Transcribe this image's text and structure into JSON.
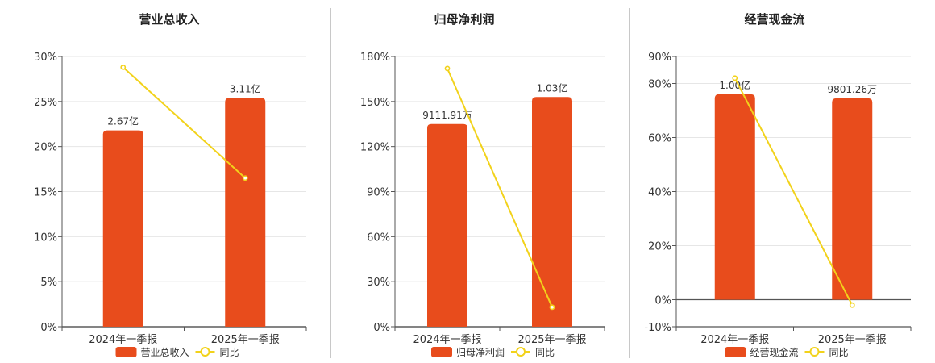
{
  "colors": {
    "bar": "#E84C1C",
    "line": "#F2D21B",
    "grid": "#e6e6e6",
    "axis": "#555555"
  },
  "chart_data": [
    {
      "type": "bar",
      "title": "营业总收入",
      "categories": [
        "2024年一季报",
        "2025年一季报"
      ],
      "y_ticks": [
        "0%",
        "5%",
        "10%",
        "15%",
        "20%",
        "25%",
        "30%"
      ],
      "ylim": [
        0,
        30
      ],
      "bar_labels": [
        "2.67亿",
        "3.11亿"
      ],
      "series": [
        {
          "name": "营业总收入",
          "type": "bar",
          "values": [
            21.8,
            25.4
          ]
        },
        {
          "name": "同比",
          "type": "line",
          "values": [
            28.8,
            16.5
          ]
        }
      ],
      "legend": [
        "营业总收入",
        "同比"
      ]
    },
    {
      "type": "bar",
      "title": "归母净利润",
      "categories": [
        "2024年一季报",
        "2025年一季报"
      ],
      "y_ticks": [
        "0%",
        "30%",
        "60%",
        "90%",
        "120%",
        "150%",
        "180%"
      ],
      "ylim": [
        0,
        180
      ],
      "bar_labels": [
        "9111.91万",
        "1.03亿"
      ],
      "series": [
        {
          "name": "归母净利润",
          "type": "bar",
          "values": [
            135,
            153
          ]
        },
        {
          "name": "同比",
          "type": "line",
          "values": [
            172,
            13
          ]
        }
      ],
      "legend": [
        "归母净利润",
        "同比"
      ]
    },
    {
      "type": "bar",
      "title": "经营现金流",
      "categories": [
        "2024年一季报",
        "2025年一季报"
      ],
      "y_ticks": [
        "-10%",
        "0%",
        "20%",
        "40%",
        "60%",
        "80%",
        "90%"
      ],
      "ylim": [
        -10,
        90
      ],
      "bar_labels": [
        "1.00亿",
        "9801.26万"
      ],
      "series": [
        {
          "name": "经营现金流",
          "type": "bar",
          "values": [
            76,
            74.5
          ]
        },
        {
          "name": "同比",
          "type": "line",
          "values": [
            82,
            -2
          ]
        }
      ],
      "legend": [
        "经营现金流",
        "同比"
      ]
    }
  ]
}
